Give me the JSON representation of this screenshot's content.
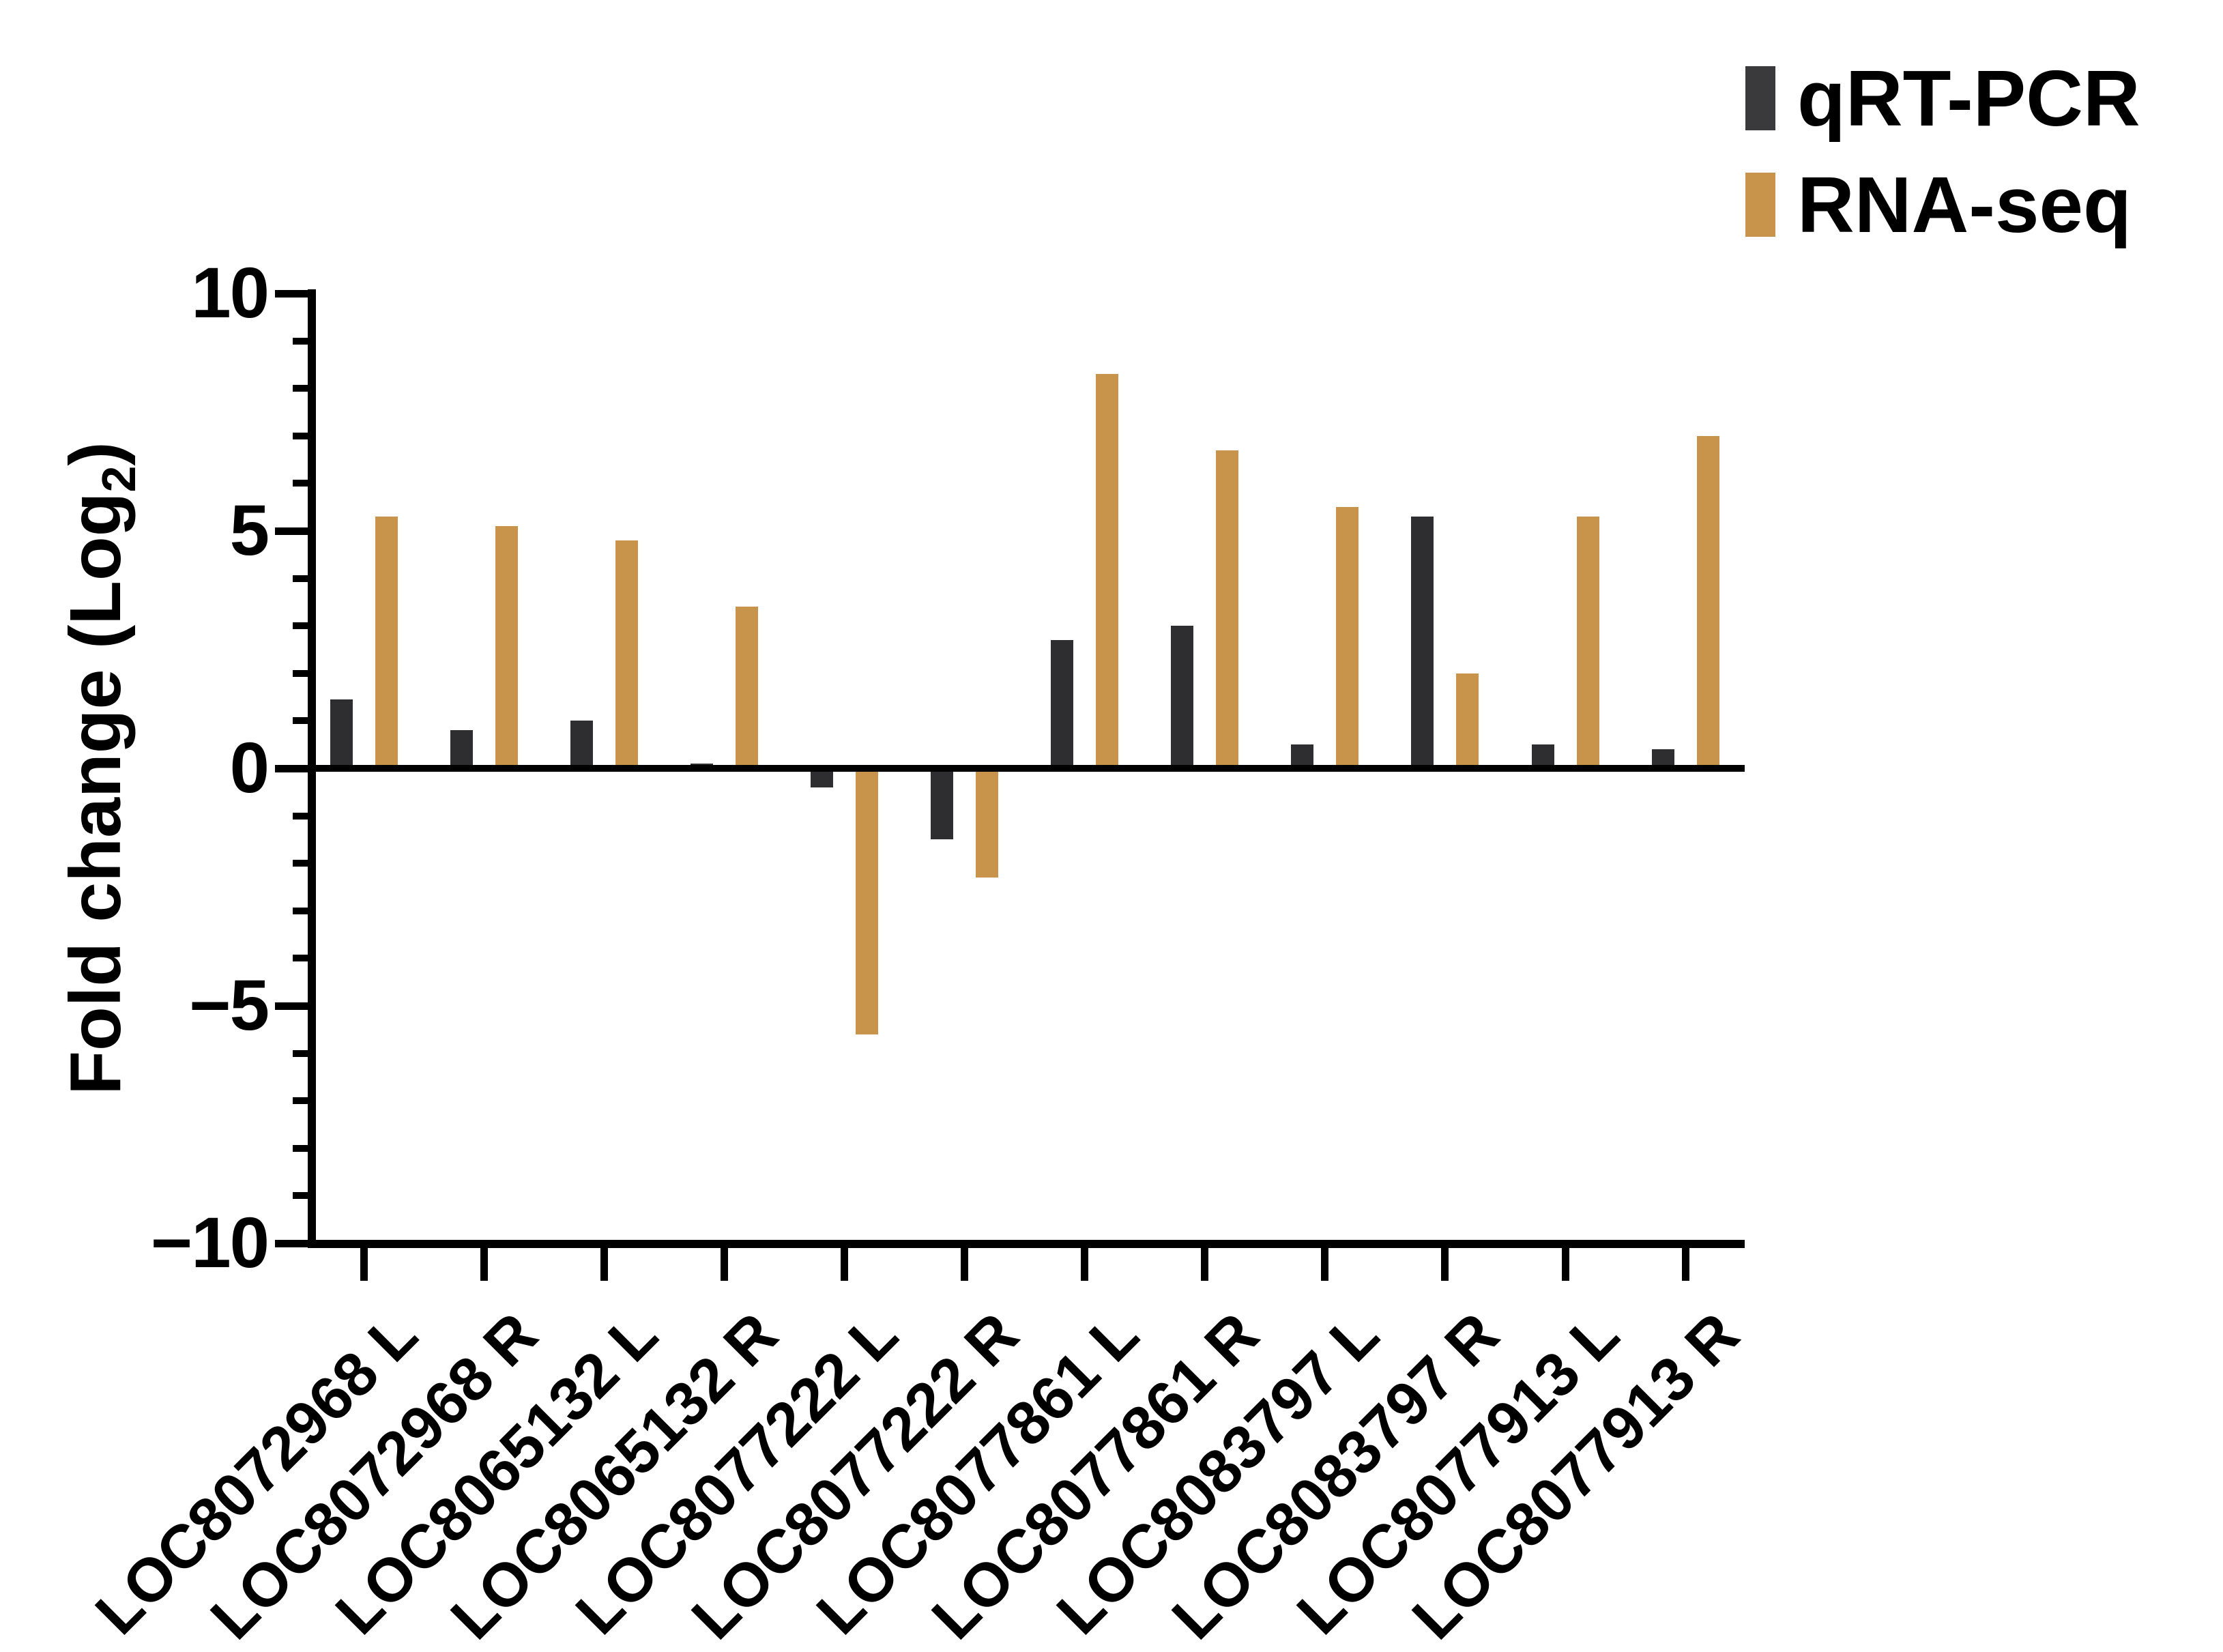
{
  "figure": {
    "background": "#ffffff",
    "axis_color": "#000000"
  },
  "legend": {
    "position": "top-right",
    "items": [
      {
        "label": "qRT-PCR",
        "color": "#3a3a3c"
      },
      {
        "label": "RNA-seq",
        "color": "#c8944c"
      }
    ]
  },
  "chart_data": {
    "type": "bar",
    "title": "",
    "xlabel": "",
    "ylabel": "Fold change (Log2)",
    "ylabel_parts": {
      "prefix": "Fold change  (Log",
      "sub": "2",
      "suffix": ")"
    },
    "ylim": [
      -10,
      10
    ],
    "y_major_ticks": [
      10,
      5,
      0,
      -5,
      -10
    ],
    "y_major_tick_labels": [
      "10",
      "5",
      "0",
      "−5",
      "−10"
    ],
    "y_minor_tick_step": 1,
    "grid": false,
    "legend_position": "top-right",
    "categories": [
      "LOC8072968 L",
      "LOC8072968 R",
      "LOC8065132 L",
      "LOC8065132 R",
      "LOC8077222 L",
      "LOC8077222 R",
      "LOC8077861 L",
      "LOC8077861 R",
      "LOC8083797 L",
      "LOC8083797 R",
      "LOC8077913 L",
      "LOC8077913 R"
    ],
    "series": [
      {
        "name": "qRT-PCR",
        "color": "#2e2e30",
        "values": [
          1.45,
          0.8,
          1.0,
          0.1,
          -0.4,
          -1.5,
          2.7,
          3.0,
          0.5,
          5.3,
          0.5,
          0.4
        ]
      },
      {
        "name": "RNA-seq",
        "color": "#c8944c",
        "values": [
          5.3,
          5.1,
          4.8,
          3.4,
          -5.6,
          -2.3,
          8.3,
          6.7,
          5.5,
          2.0,
          5.3,
          7.0
        ]
      }
    ]
  }
}
